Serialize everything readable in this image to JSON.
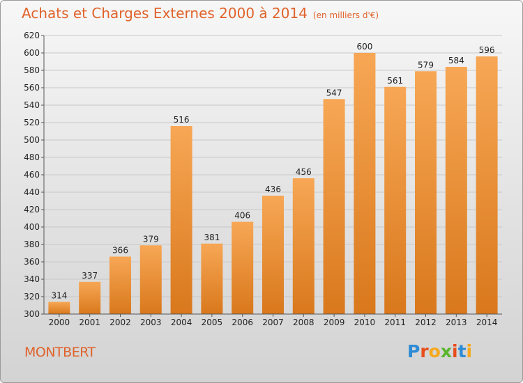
{
  "title": "Achats et Charges Externes 2000 à 2014",
  "unit": "(en milliers d'€)",
  "place": "MONTBERT",
  "logo": {
    "text": "Proxiti",
    "colors": [
      "#2d8bd6",
      "#e84c1c",
      "#f7a81b",
      "#5ab52c",
      "#e84c1c",
      "#2d8bd6",
      "#f7a81b"
    ]
  },
  "colors": {
    "accent": "#e0622a",
    "bar_light": "#f7a755",
    "bar_dark": "#d9781c"
  },
  "chart_data": {
    "type": "bar",
    "categories": [
      "2000",
      "2001",
      "2002",
      "2003",
      "2004",
      "2005",
      "2006",
      "2007",
      "2008",
      "2009",
      "2010",
      "2011",
      "2012",
      "2013",
      "2014"
    ],
    "values": [
      314,
      337,
      366,
      379,
      516,
      381,
      406,
      436,
      456,
      547,
      600,
      561,
      579,
      584,
      596
    ],
    "ylim": [
      300,
      620
    ],
    "yticks": [
      300,
      320,
      340,
      360,
      380,
      400,
      420,
      440,
      460,
      480,
      500,
      520,
      540,
      560,
      580,
      600,
      620
    ],
    "grid": true,
    "title": "Achats et Charges Externes 2000 à 2014",
    "xlabel": "",
    "ylabel": ""
  }
}
